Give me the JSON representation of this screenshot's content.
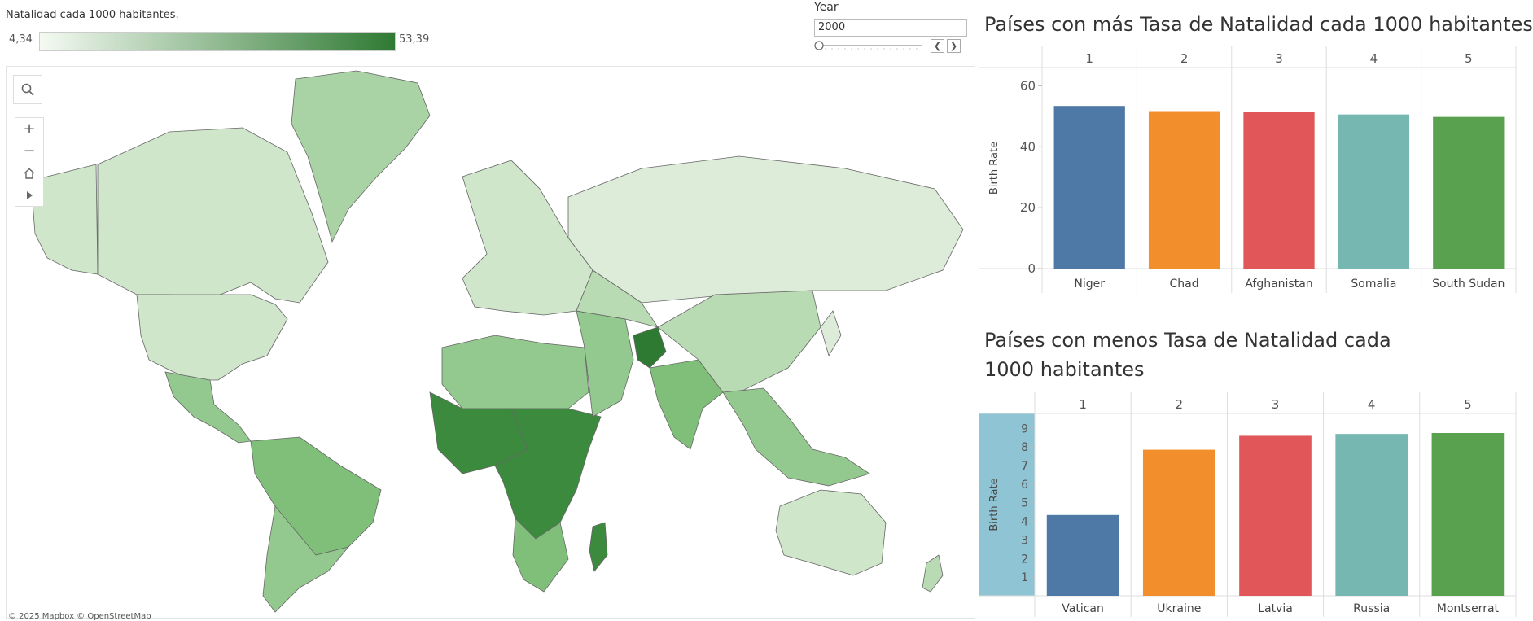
{
  "legend": {
    "title": "Natalidad cada 1000 habitantes.",
    "min_label": "4,34",
    "max_label": "53,39",
    "color_low": "#f4faf2",
    "color_high": "#2f7a33"
  },
  "year_filter": {
    "label": "Year",
    "value": "2000",
    "prev_icon": "chevron-left-icon",
    "next_icon": "chevron-right-icon"
  },
  "map": {
    "copyright": "© 2025 Mapbox © OpenStreetMap",
    "tools": [
      "search-icon",
      "zoom-in-icon",
      "zoom-out-icon",
      "home-icon",
      "play-icon"
    ]
  },
  "chart_data": [
    {
      "type": "bar",
      "title": "Países con más Tasa de Natalidad cada 1000 habitantes",
      "ylabel": "Birth Rate",
      "ylim": [
        0,
        66
      ],
      "yticks": [
        0,
        20,
        40,
        60
      ],
      "header_ranks": [
        "1",
        "2",
        "3",
        "4",
        "5"
      ],
      "categories": [
        "Niger",
        "Chad",
        "Afghanistan",
        "Somalia",
        "South Sudan"
      ],
      "values": [
        53.39,
        51.7,
        51.5,
        50.6,
        49.8
      ],
      "colors": [
        "#4e79a7",
        "#f28e2b",
        "#e15759",
        "#76b7b2",
        "#59a14f"
      ]
    },
    {
      "type": "bar",
      "title": "Países con menos Tasa de Natalidad cada 1000 habitantes",
      "ylabel": "Birth Rate",
      "ylim": [
        0,
        9.8
      ],
      "yticks": [
        1,
        2,
        3,
        4,
        5,
        6,
        7,
        8,
        9
      ],
      "header_ranks": [
        "1",
        "2",
        "3",
        "4",
        "5"
      ],
      "categories": [
        "Vatican",
        "Ukraine",
        "Latvia",
        "Russia",
        "Montserrat"
      ],
      "values": [
        4.34,
        7.85,
        8.6,
        8.7,
        8.75
      ],
      "colors": [
        "#4e79a7",
        "#f28e2b",
        "#e15759",
        "#76b7b2",
        "#59a14f"
      ]
    }
  ]
}
